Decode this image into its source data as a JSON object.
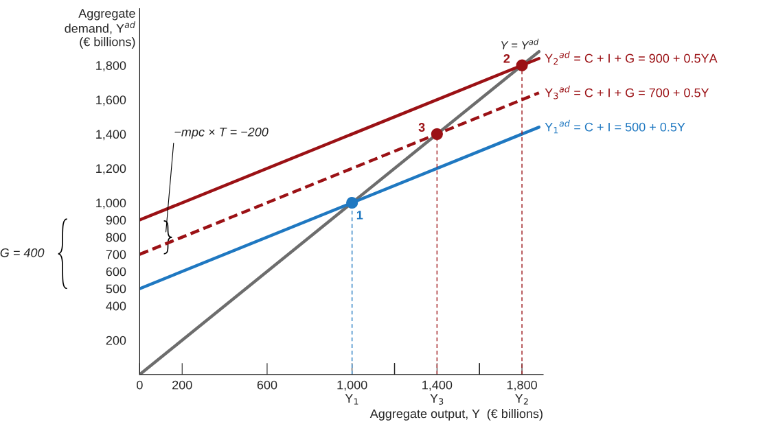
{
  "chart_data": {
    "type": "line",
    "xlabel": "Aggregate output, Y  (€ billions)",
    "ylabel": "Aggregate\ndemand, Y$^{ad}$\n(€ billions)",
    "xlim": [
      0,
      1900
    ],
    "ylim": [
      0,
      2130
    ],
    "xticks": [
      {
        "value": 0,
        "label": "0"
      },
      200,
      600,
      {
        "value": 1000,
        "label": "1,000\nY$_{1}$"
      },
      {
        "value": 1200,
        "label": null
      },
      {
        "value": 1400,
        "label": "1,400\nY$_{3}$"
      },
      {
        "value": 1600,
        "label": null
      },
      {
        "value": 1800,
        "label": "1,800\nY$_{2}$"
      }
    ],
    "yticks": [
      200,
      400,
      500,
      600,
      700,
      800,
      900,
      {
        "value": 1000,
        "label": "1,000"
      },
      {
        "value": 1200,
        "label": "1,200"
      },
      {
        "value": 1400,
        "label": "1,400"
      },
      {
        "value": 1600,
        "label": "1,600"
      },
      {
        "value": 1800,
        "label": "1,800"
      }
    ],
    "grid": false,
    "legend": false,
    "series": [
      {
        "name": "Y = Y$^{ad}$",
        "color": "#6d6d6d",
        "x": [
          0,
          1880
        ],
        "values": [
          0,
          1880
        ],
        "line_style": "solid"
      },
      {
        "name": "Y$_{2}$$^{ad}$ = C + I + G = 900 + 0.5YA",
        "color": "#9b1115",
        "x": [
          0,
          1880
        ],
        "values": [
          900,
          1840
        ],
        "line_style": "solid"
      },
      {
        "name": "Y$_{3}$$^{ad}$ = C + I + G = 700 + 0.5Y",
        "color": "#9b1115",
        "x": [
          0,
          1880
        ],
        "values": [
          700,
          1640
        ],
        "line_style": "dashed"
      },
      {
        "name": "Y$_{1}$$^{ad}$ = C + I = 500 + 0.5Y",
        "color": "#1f78c1",
        "x": [
          0,
          1880
        ],
        "values": [
          500,
          1440
        ],
        "line_style": "solid"
      },
      {
        "color": "#1f78c1",
        "x": [
          1000,
          1000
        ],
        "values": [
          0,
          1000
        ],
        "line_style": "dashed"
      },
      {
        "color": "#9b1115",
        "x": [
          1400,
          1400
        ],
        "values": [
          0,
          1400
        ],
        "line_style": "dashed"
      },
      {
        "color": "#9b1115",
        "x": [
          1800,
          1800
        ],
        "values": [
          0,
          1800
        ],
        "line_style": "dashed"
      },
      {
        "type": "scatter",
        "color": "#1f78c1",
        "x": [
          1000
        ],
        "values": [
          1000
        ],
        "marker": "circle"
      },
      {
        "type": "scatter",
        "color": "#9b1115",
        "x": [
          1800,
          1400
        ],
        "values": [
          1800,
          1400
        ],
        "marker": "circle"
      }
    ],
    "annotations": [
      {
        "text": "1",
        "x": 1000,
        "y": 1000
      },
      {
        "text": "2",
        "x": 1800,
        "y": 1800
      },
      {
        "text": "3",
        "x": 1400,
        "y": 1400
      },
      "−mpc × T = −200",
      "G = 400"
    ]
  }
}
